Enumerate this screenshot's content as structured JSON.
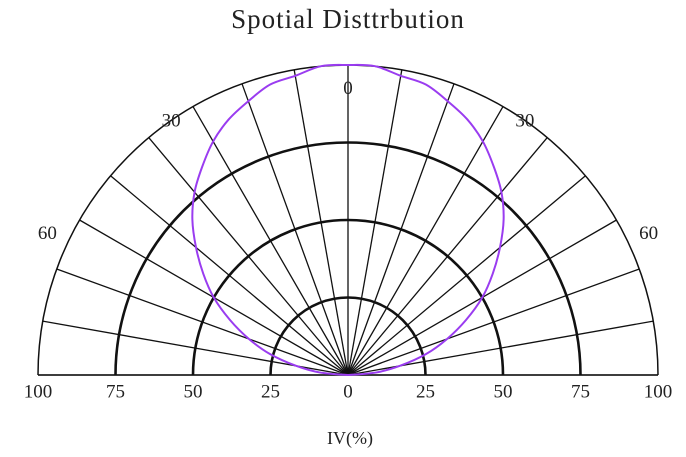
{
  "chart_data": {
    "type": "polar",
    "title": "Spotial Disttrbution",
    "xlabel": "IV(%)",
    "theta": [
      -90,
      -85,
      -80,
      -75,
      -70,
      -65,
      -60,
      -55,
      -50,
      -45,
      -40,
      -35,
      -30,
      -25,
      -20,
      -15,
      -10,
      -5,
      0,
      5,
      10,
      15,
      20,
      25,
      30,
      35,
      40,
      45,
      50,
      55,
      60,
      65,
      70,
      75,
      80,
      85,
      90
    ],
    "series": [
      {
        "color": "#9a3cf0",
        "values": [
          0,
          9,
          17,
          26,
          34,
          42,
          50,
          57,
          64,
          71,
          77,
          82,
          87,
          91,
          94,
          97,
          98,
          100,
          100,
          100,
          98,
          97,
          94,
          91,
          87,
          82,
          77,
          71,
          64,
          57,
          50,
          42,
          34,
          26,
          17,
          9,
          0
        ]
      }
    ],
    "rlim": [
      0,
      100
    ],
    "xticks": [
      {
        "value": -100,
        "label": "100"
      },
      {
        "value": -75,
        "label": "75"
      },
      {
        "value": -50,
        "label": "50"
      },
      {
        "value": -25,
        "label": "25"
      },
      0,
      25,
      50,
      75,
      100
    ],
    "thetaticks": [
      {
        "value": -60,
        "label": "60"
      },
      {
        "value": -30,
        "label": "30"
      },
      0,
      30,
      60
    ],
    "thetagrid": [
      -90,
      -80,
      -70,
      -60,
      -50,
      -40,
      -30,
      -20,
      -10,
      0,
      10,
      20,
      30,
      40,
      50,
      60,
      70,
      80,
      90
    ]
  }
}
